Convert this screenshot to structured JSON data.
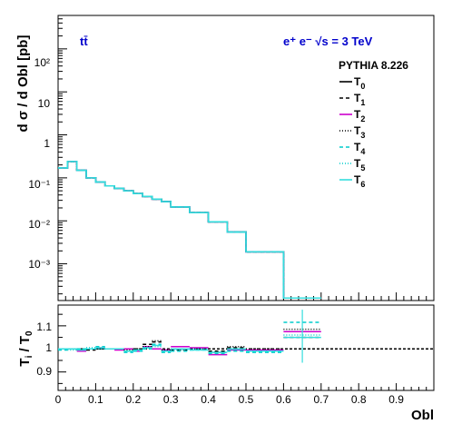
{
  "chart_data": [
    {
      "type": "line",
      "panel": "main",
      "ylabel": "d σ / d Obl [pb]",
      "ylog": true,
      "ylim": [
        0.00014,
        600
      ],
      "xlim": [
        0,
        1
      ],
      "ytick_labels": [
        "10⁻³",
        "10⁻²",
        "10⁻¹",
        "1",
        "10",
        "10²"
      ],
      "annotations": {
        "process": "tt̄",
        "beam": "e⁺ e⁻  √s = 3 TeV",
        "generator": "PYTHIA 8.226"
      },
      "bin_edges": [
        0,
        0.025,
        0.05,
        0.075,
        0.1,
        0.125,
        0.15,
        0.175,
        0.2,
        0.225,
        0.25,
        0.275,
        0.3,
        0.35,
        0.4,
        0.45,
        0.5,
        0.6,
        0.7
      ],
      "series": [
        {
          "name": "T0",
          "label_base": "T",
          "label_sub": "0",
          "color": "#000000",
          "dash": "",
          "values": [
            0.17,
            0.24,
            0.15,
            0.1,
            0.08,
            0.065,
            0.057,
            0.05,
            0.043,
            0.037,
            0.032,
            0.028,
            0.021,
            0.0155,
            0.0095,
            0.0055,
            0.0019,
            0.00016
          ]
        },
        {
          "name": "T1",
          "label_base": "T",
          "label_sub": "1",
          "color": "#000000",
          "dash": "4,3",
          "values": [
            0.17,
            0.24,
            0.15,
            0.1,
            0.08,
            0.065,
            0.057,
            0.05,
            0.043,
            0.037,
            0.032,
            0.028,
            0.021,
            0.0155,
            0.0095,
            0.0055,
            0.0019,
            0.00016
          ]
        },
        {
          "name": "T2",
          "label_base": "T",
          "label_sub": "2",
          "color": "#cc00cc",
          "dash": "",
          "values": [
            0.17,
            0.24,
            0.15,
            0.1,
            0.08,
            0.065,
            0.057,
            0.05,
            0.043,
            0.037,
            0.032,
            0.028,
            0.021,
            0.0155,
            0.0095,
            0.0055,
            0.0019,
            0.00016
          ]
        },
        {
          "name": "T3",
          "label_base": "T",
          "label_sub": "3",
          "color": "#000000",
          "dash": "1,2",
          "values": [
            0.17,
            0.24,
            0.15,
            0.1,
            0.08,
            0.065,
            0.057,
            0.05,
            0.043,
            0.037,
            0.032,
            0.028,
            0.021,
            0.0155,
            0.0095,
            0.0055,
            0.0019,
            0.00016
          ]
        },
        {
          "name": "T4",
          "label_base": "T",
          "label_sub": "4",
          "color": "#00cccc",
          "dash": "4,3",
          "values": [
            0.17,
            0.24,
            0.15,
            0.1,
            0.08,
            0.065,
            0.057,
            0.05,
            0.043,
            0.037,
            0.032,
            0.028,
            0.021,
            0.0155,
            0.0095,
            0.0055,
            0.0019,
            0.00016
          ]
        },
        {
          "name": "T5",
          "label_base": "T",
          "label_sub": "5",
          "color": "#00cccc",
          "dash": "1,2",
          "values": [
            0.17,
            0.24,
            0.15,
            0.1,
            0.08,
            0.065,
            0.057,
            0.05,
            0.043,
            0.037,
            0.032,
            0.028,
            0.021,
            0.0155,
            0.0095,
            0.0055,
            0.0019,
            0.00016
          ]
        },
        {
          "name": "T6",
          "label_base": "T",
          "label_sub": "6",
          "color": "#33dddd",
          "dash": "",
          "values": [
            0.17,
            0.24,
            0.15,
            0.1,
            0.08,
            0.065,
            0.057,
            0.05,
            0.043,
            0.037,
            0.032,
            0.028,
            0.021,
            0.0155,
            0.0095,
            0.0055,
            0.0019,
            0.00016
          ]
        }
      ]
    },
    {
      "type": "line",
      "panel": "ratio",
      "ylabel_base": "T",
      "ylabel_sub": "i",
      "ylabel_mid": " / T",
      "ylabel_sub2": "0",
      "xlabel": "Obl",
      "ylim": [
        0.82,
        1.19
      ],
      "xlim": [
        0,
        1
      ],
      "yticks": [
        0.9,
        1,
        1.1
      ],
      "ytick_labels": [
        "0.9",
        "1",
        "1.1"
      ],
      "xticks": [
        0,
        0.1,
        0.2,
        0.3,
        0.4,
        0.5,
        0.6,
        0.7,
        0.8,
        0.9
      ],
      "xtick_labels": [
        "0",
        "0.1",
        "0.2",
        "0.3",
        "0.4",
        "0.5",
        "0.6",
        "0.7",
        "0.8",
        "0.9"
      ],
      "reference_line": 1,
      "bin_edges": [
        0,
        0.025,
        0.05,
        0.075,
        0.1,
        0.125,
        0.15,
        0.175,
        0.2,
        0.225,
        0.25,
        0.275,
        0.3,
        0.35,
        0.4,
        0.45,
        0.5,
        0.6,
        0.7
      ],
      "series": [
        {
          "name": "T1",
          "color": "#000000",
          "dash": "4,3",
          "values": [
            1.0,
            1.0,
            0.995,
            0.995,
            1.0,
            1.0,
            1.0,
            0.99,
            1.0,
            1.02,
            1.03,
            0.99,
            0.995,
            1.0,
            0.99,
            1.005,
            0.99,
            1.05
          ]
        },
        {
          "name": "T2",
          "color": "#cc00cc",
          "dash": "",
          "values": [
            1.0,
            1.0,
            0.99,
            1.0,
            1.005,
            1.0,
            0.995,
            1.0,
            0.99,
            1.01,
            1.0,
            0.995,
            1.01,
            1.005,
            0.975,
            0.995,
            0.995,
            1.075
          ]
        },
        {
          "name": "T3",
          "color": "#000000",
          "dash": "1,2",
          "values": [
            1.0,
            1.0,
            1.0,
            1.0,
            1.0,
            1.0,
            1.0,
            0.995,
            1.0,
            1.01,
            1.035,
            0.995,
            1.0,
            1.0,
            0.985,
            1.01,
            1.0,
            1.085
          ]
        },
        {
          "name": "T4",
          "color": "#00cccc",
          "dash": "4,3",
          "values": [
            0.995,
            1.0,
            1.0,
            1.0,
            1.01,
            1.0,
            1.0,
            0.985,
            0.99,
            1.0,
            1.02,
            0.985,
            0.99,
            0.995,
            0.98,
            0.99,
            0.985,
            1.115
          ]
        },
        {
          "name": "T5",
          "color": "#00cccc",
          "dash": "1,2",
          "values": [
            1.0,
            0.995,
            1.0,
            1.005,
            1.0,
            1.0,
            1.0,
            0.99,
            0.995,
            1.005,
            1.01,
            0.99,
            0.995,
            1.0,
            0.985,
            0.995,
            0.99,
            1.06
          ]
        },
        {
          "name": "T6",
          "color": "#33dddd",
          "dash": "",
          "values": [
            1.0,
            1.0,
            0.995,
            1.0,
            1.005,
            1.0,
            1.0,
            0.99,
            0.995,
            1.005,
            1.015,
            0.99,
            1.0,
            0.995,
            0.985,
            1.0,
            0.99,
            1.05
          ]
        }
      ],
      "error_bars": [
        {
          "x": 0.65,
          "low": 0.94,
          "high": 1.17,
          "color": "#33dddd"
        }
      ]
    }
  ]
}
